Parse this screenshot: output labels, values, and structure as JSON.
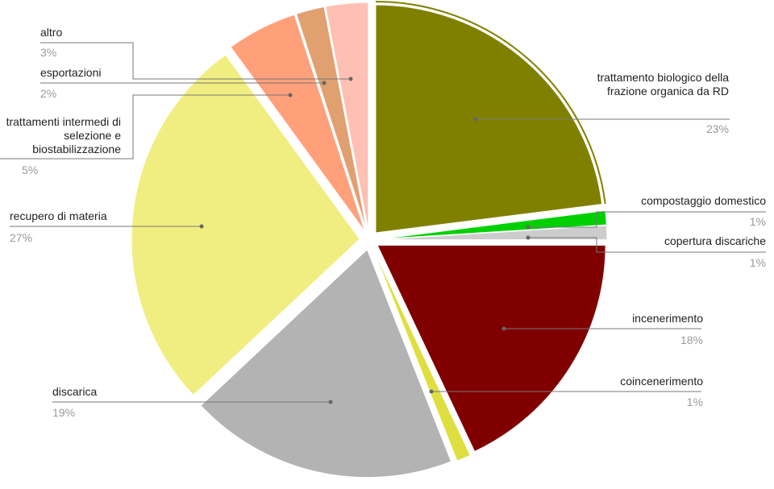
{
  "chart_data": {
    "type": "pie",
    "categories": [
      "trattamento biologico della frazione organica da RD",
      "compostaggio domestico",
      "copertura discariche",
      "incenerimento",
      "coincenerimento",
      "discarica",
      "recupero di materia",
      "trattamenti intermedi di selezione e biostabilizzazione",
      "esportazioni",
      "altro"
    ],
    "values": [
      23,
      1,
      1,
      18,
      1,
      19,
      27,
      5,
      2,
      3
    ],
    "value_labels": [
      "23%",
      "1%",
      "1%",
      "18%",
      "1%",
      "19%",
      "27%",
      "5%",
      "2%",
      "3%"
    ],
    "colors": [
      "#808000",
      "#00d000",
      "#cccccc",
      "#800000",
      "#dede40",
      "#b3b3b3",
      "#f0ee80",
      "#ffa07a",
      "#e0a070",
      "#ffc0b4"
    ]
  }
}
